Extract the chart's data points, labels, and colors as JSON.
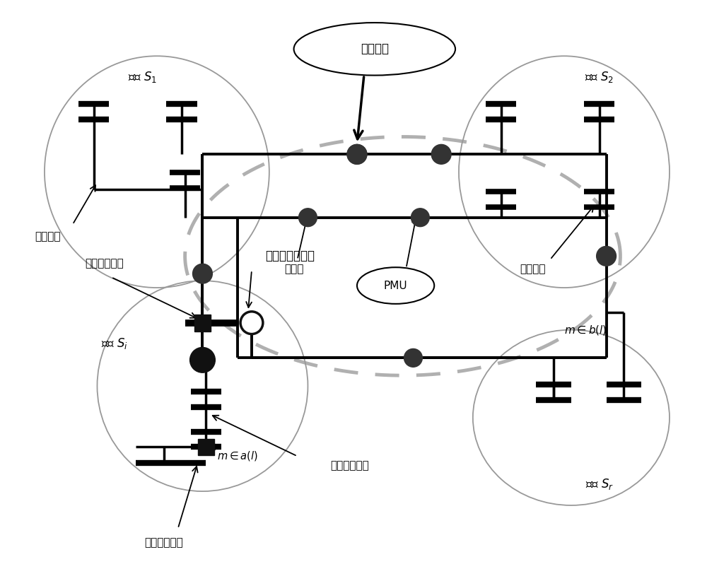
{
  "bg_color": "#ffffff",
  "fig_width": 10.0,
  "fig_height": 8.22,
  "dpi": 100,
  "labels": {
    "coordination": "协调系统",
    "region_s1": "区域 $S_1$",
    "region_s2": "区域 $S_2$",
    "region_si": "区域 $S_i$",
    "region_sr": "区域 $S_r$",
    "internal_bus": "内部母线",
    "tie_line": "连接线",
    "PMU": "PMU",
    "boundary_bus": "边界母线",
    "boundary_injection": "边界注入量测",
    "tie_line_flow": "连接线潮流量测",
    "m_in_al": "$m\\in a(l)$",
    "m_in_bl": "$m\\in b(l)$",
    "internal_flow": "内部潮流量测",
    "internal_injection": "内部注入量测"
  },
  "colors": {
    "black": "#000000",
    "gray_dot": "#b0b0b0",
    "node_fill": "#444444",
    "region_edge": "#999999",
    "line_color": "#000000"
  }
}
